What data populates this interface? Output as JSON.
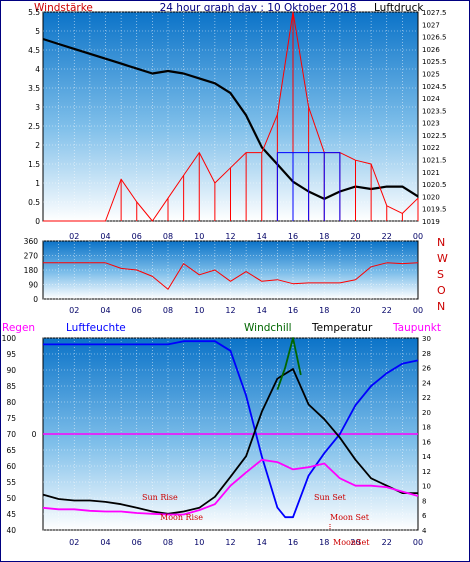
{
  "title": "24 hour graph day : 10 Oktober 2018",
  "chart_data": [
    {
      "type": "line",
      "name_left": "Windstärke",
      "name_right": "Luftdruck",
      "left_axis": {
        "ylim": [
          0,
          5.5
        ],
        "ticks": [
          "0",
          "0.5",
          "1",
          "1.5",
          "2",
          "2.5",
          "3",
          "3.5",
          "4",
          "4.5",
          "5",
          "5.5"
        ]
      },
      "right_axis": {
        "ylim": [
          1019,
          1027.5
        ],
        "ticks": [
          "1019",
          "1019.5",
          "1020",
          "1020.5",
          "1021",
          "1021.5",
          "1022",
          "1022.5",
          "1023",
          "1023.5",
          "1024",
          "1024.5",
          "1025",
          "1025.5",
          "1026",
          "1026.5",
          "1027",
          "1027.5"
        ]
      },
      "x_ticks": [
        "02",
        "04",
        "06",
        "08",
        "10",
        "12",
        "14",
        "16",
        "18",
        "20",
        "22",
        "00"
      ],
      "series": [
        {
          "name": "Luftdruck",
          "color": "#000000",
          "x": [
            0,
            1,
            2,
            3,
            4,
            5,
            6,
            7,
            8,
            9,
            10,
            11,
            12,
            13,
            14,
            15,
            16,
            17,
            18,
            19,
            20,
            21,
            22,
            23,
            24
          ],
          "values": [
            1026.4,
            1026.2,
            1026.0,
            1025.8,
            1025.6,
            1025.4,
            1025.2,
            1025.0,
            1025.1,
            1025.0,
            1024.8,
            1024.6,
            1024.2,
            1023.3,
            1022.0,
            1021.3,
            1020.6,
            1020.2,
            1019.9,
            1020.2,
            1020.4,
            1020.3,
            1020.4,
            1020.4,
            1020.0
          ]
        },
        {
          "name": "Windstärke",
          "color": "#ff0000",
          "x": [
            0,
            2,
            4,
            5,
            6,
            7,
            8,
            9,
            10,
            11,
            12,
            13,
            14,
            15,
            16,
            17,
            18,
            19,
            20,
            21,
            22,
            23,
            24
          ],
          "values": [
            0,
            0,
            0,
            1.1,
            0.5,
            0,
            0.6,
            1.2,
            1.8,
            1.0,
            1.4,
            1.8,
            1.8,
            2.8,
            5.5,
            3.0,
            1.8,
            1.8,
            1.6,
            1.5,
            0.4,
            0.2,
            0.6
          ]
        },
        {
          "name": "Böen",
          "color": "#0000ff",
          "x": [
            15,
            16,
            17,
            18,
            19
          ],
          "values": [
            1.8,
            1.8,
            1.8,
            1.8,
            1.8
          ]
        }
      ]
    },
    {
      "type": "line",
      "name": "Windrichtung",
      "ylim": [
        0,
        360
      ],
      "y_ticks": [
        "0",
        "90",
        "180",
        "270",
        "360"
      ],
      "direction_labels": [
        "N",
        "W",
        "S",
        "O",
        "N"
      ],
      "x_ticks": [
        "02",
        "04",
        "06",
        "08",
        "10",
        "12",
        "14",
        "16",
        "18",
        "20",
        "22",
        "00"
      ],
      "series": [
        {
          "name": "Windrichtung",
          "color": "#ff0000",
          "x": [
            0,
            2,
            4,
            5,
            6,
            7,
            8,
            9,
            10,
            11,
            12,
            13,
            14,
            15,
            16,
            17,
            18,
            19,
            20,
            21,
            22,
            23,
            24
          ],
          "values": [
            225,
            225,
            225,
            190,
            180,
            140,
            60,
            220,
            150,
            180,
            110,
            170,
            110,
            120,
            95,
            100,
            100,
            100,
            120,
            200,
            225,
            220,
            225
          ]
        }
      ]
    },
    {
      "type": "line",
      "legend": [
        "Regen",
        "Luftfeuchte",
        "Windchill",
        "Temperatur",
        "Taupunkt"
      ],
      "left_axis": {
        "ylim": [
          40,
          100
        ],
        "ticks": [
          "40",
          "45",
          "50",
          "55",
          "60",
          "65",
          "70",
          "75",
          "80",
          "85",
          "90",
          "95",
          "100"
        ]
      },
      "rain_axis": {
        "tick": "0"
      },
      "right_axis": {
        "ylim": [
          4,
          30
        ],
        "ticks": [
          "4",
          "6",
          "8",
          "10",
          "12",
          "14",
          "16",
          "18",
          "20",
          "22",
          "24",
          "26",
          "28",
          "30"
        ]
      },
      "x_ticks": [
        "02",
        "04",
        "06",
        "08",
        "10",
        "12",
        "14",
        "16",
        "18",
        "20",
        "22",
        "00"
      ],
      "annotations": [
        "Sun Rise",
        "Moon Rise",
        "Sun Set",
        "Moon Set",
        "MoonSet"
      ],
      "series": [
        {
          "name": "Luftfeuchte",
          "color": "#0000ff",
          "axis": "left",
          "x": [
            0,
            2,
            4,
            6,
            8,
            9,
            10,
            11,
            12,
            13,
            14,
            15,
            15.5,
            16,
            17,
            18,
            19,
            20,
            21,
            22,
            23,
            24
          ],
          "values": [
            98,
            98,
            98,
            98,
            98,
            99,
            99,
            99,
            96,
            82,
            63,
            47,
            44,
            44,
            57,
            64,
            70,
            79,
            85,
            89,
            92,
            93
          ]
        },
        {
          "name": "Temperatur",
          "color": "#000000",
          "axis": "right",
          "x": [
            0,
            1,
            2,
            3,
            4,
            5,
            6,
            7,
            8,
            9,
            10,
            11,
            12,
            13,
            14,
            15,
            16,
            17,
            18,
            19,
            20,
            21,
            22,
            23,
            24
          ],
          "values": [
            8.8,
            8.2,
            8.0,
            8.0,
            7.8,
            7.5,
            7.0,
            6.5,
            6.2,
            6.5,
            7.0,
            8.5,
            11.2,
            14.0,
            20.0,
            24.5,
            25.8,
            21.0,
            19.0,
            16.5,
            13.5,
            11.0,
            10.0,
            9.0,
            9.0
          ]
        },
        {
          "name": "Windchill",
          "color": "#006600",
          "axis": "right",
          "x": [
            15,
            15.5,
            16,
            16.5
          ],
          "values": [
            23,
            26,
            30,
            25
          ]
        },
        {
          "name": "Taupunkt",
          "color": "#ff00ff",
          "axis": "right",
          "x": [
            0,
            1,
            2,
            3,
            4,
            5,
            6,
            7,
            8,
            9,
            10,
            11,
            12,
            13,
            14,
            15,
            16,
            17,
            18,
            19,
            20,
            21,
            22,
            23,
            24
          ],
          "values": [
            7.0,
            6.8,
            6.8,
            6.6,
            6.5,
            6.5,
            6.3,
            6.2,
            6.1,
            6.1,
            6.7,
            7.5,
            10.0,
            11.8,
            13.5,
            13.2,
            12.2,
            12.5,
            13.0,
            11.0,
            10.0,
            10.0,
            9.8,
            9.2,
            8.6
          ]
        }
      ]
    }
  ]
}
